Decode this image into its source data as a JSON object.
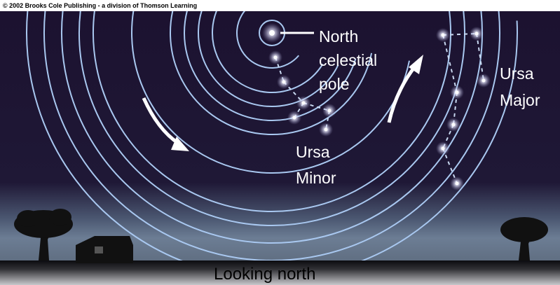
{
  "copyright": "© 2002 Brooks Cole Publishing - a division of Thomson Learning",
  "labels": {
    "pole": [
      "North",
      "celestial",
      "pole"
    ],
    "ursa_major": [
      "Ursa",
      "Major"
    ],
    "ursa_minor": [
      "Ursa",
      "Minor"
    ]
  },
  "caption": "Looking north"
}
